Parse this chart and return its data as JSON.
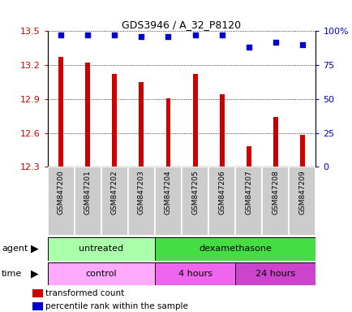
{
  "title": "GDS3946 / A_32_P8120",
  "samples": [
    "GSM847200",
    "GSM847201",
    "GSM847202",
    "GSM847203",
    "GSM847204",
    "GSM847205",
    "GSM847206",
    "GSM847207",
    "GSM847208",
    "GSM847209"
  ],
  "transformed_counts": [
    13.27,
    13.22,
    13.12,
    13.05,
    12.91,
    13.12,
    12.94,
    12.48,
    12.74,
    12.58
  ],
  "percentile_ranks": [
    97,
    97,
    97,
    96,
    96,
    97,
    97,
    88,
    92,
    90
  ],
  "ylim": [
    12.3,
    13.5
  ],
  "yticks": [
    12.3,
    12.6,
    12.9,
    13.2,
    13.5
  ],
  "right_yticks": [
    0,
    25,
    50,
    75,
    100
  ],
  "bar_color": "#cc0000",
  "dot_color": "#0000cc",
  "agent_untreated_color": "#aaffaa",
  "agent_dexa_color": "#44dd44",
  "time_control_color": "#ffaaff",
  "time_4h_color": "#ee66ee",
  "time_24h_color": "#cc44cc",
  "agent_untreated_label": "untreated",
  "agent_dexa_label": "dexamethasone",
  "time_control_label": "control",
  "time_4h_label": "4 hours",
  "time_24h_label": "24 hours",
  "agent_row_label": "agent",
  "time_row_label": "time",
  "legend_red_label": "transformed count",
  "legend_blue_label": "percentile rank within the sample",
  "untreated_count": 4,
  "dexa_4h_count": 3,
  "dexa_24h_count": 3,
  "n_samples": 10,
  "bar_width": 0.18
}
